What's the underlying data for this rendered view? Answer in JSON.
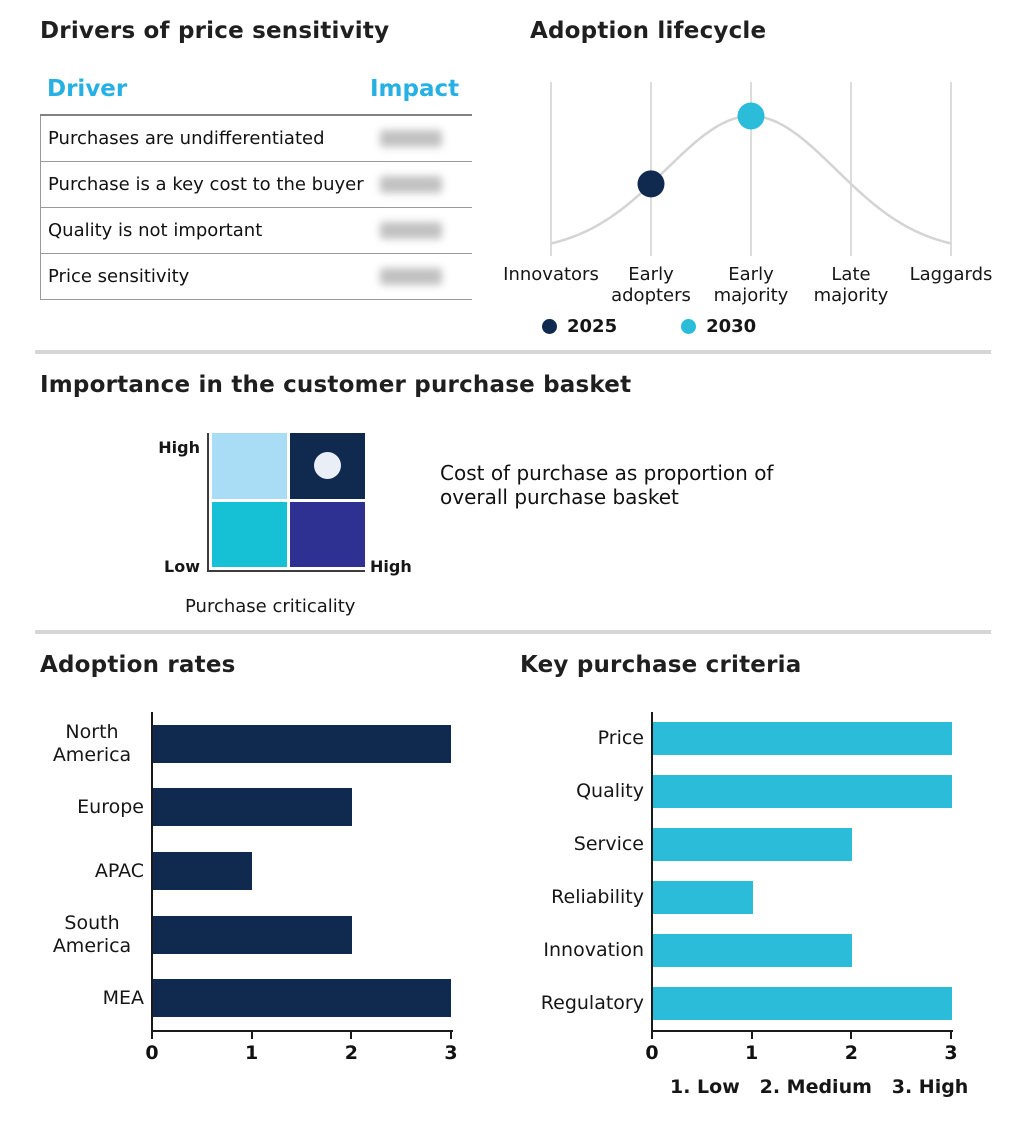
{
  "colors": {
    "navy": "#0f2a4e",
    "cyan": "#2bbcd9",
    "header_cyan": "#27b0e3",
    "light_blue": "#a9ddf5",
    "bright_cyan": "#16c1d5",
    "indigo": "#2e3192",
    "marker_light": "#e9eef7",
    "curve_gray": "#d4d4d4",
    "grid_gray": "#d0d0d0",
    "divider_gray": "#d6d6d6"
  },
  "chart_data": [
    {
      "id": "price-drivers",
      "type": "table",
      "title": "Drivers of price sensitivity",
      "columns": [
        "Driver",
        "Impact"
      ],
      "rows": [
        "Purchases are undifferentiated",
        "Purchase is a key cost to the buyer",
        "Quality is not important",
        "Price sensitivity"
      ],
      "impact_values_redacted": true
    },
    {
      "id": "adoption-lifecycle",
      "type": "line",
      "title": "Adoption lifecycle",
      "curve": "bell",
      "categories": [
        "Innovators",
        "Early adopters",
        "Early majority",
        "Late majority",
        "Laggards"
      ],
      "points": [
        {
          "label": "2025",
          "category": "Early adopters",
          "color": "#0f2a4e"
        },
        {
          "label": "2030",
          "category": "Early majority",
          "color": "#2bbcd9"
        }
      ],
      "legend": [
        {
          "label": "2025",
          "color": "#0f2a4e"
        },
        {
          "label": "2030",
          "color": "#2bbcd9"
        }
      ]
    },
    {
      "id": "purchase-basket-matrix",
      "type": "heatmap",
      "title": "Importance in the customer purchase basket",
      "x_axis_label": "Purchase criticality",
      "x_high_label": "High",
      "y_high_label": "High",
      "y_low_label": "Low",
      "annotation": "Cost of purchase as proportion of overall purchase basket",
      "quadrant_colors": {
        "top_left": "#a9ddf5",
        "top_right": "#0f2a4e",
        "bottom_left": "#16c1d5",
        "bottom_right": "#2e3192"
      },
      "marker": {
        "quadrant": "top_right",
        "color": "#e9eef7"
      }
    },
    {
      "id": "adoption-rates",
      "type": "bar",
      "orientation": "horizontal",
      "title": "Adoption rates",
      "categories": [
        "North America",
        "Europe",
        "APAC",
        "South America",
        "MEA"
      ],
      "values": [
        3,
        2,
        1,
        2,
        3
      ],
      "xlim": [
        0,
        3
      ],
      "ticks": [
        0,
        1,
        2,
        3
      ],
      "bar_color": "#0f2a4e"
    },
    {
      "id": "key-purchase-criteria",
      "type": "bar",
      "orientation": "horizontal",
      "title": "Key purchase criteria",
      "categories": [
        "Price",
        "Quality",
        "Service",
        "Reliability",
        "Innovation",
        "Regulatory"
      ],
      "values": [
        3,
        3,
        2,
        1,
        2,
        3
      ],
      "xlim": [
        0,
        3
      ],
      "ticks": [
        0,
        1,
        2,
        3
      ],
      "bar_color": "#2bbcd9",
      "scale_note": "1. Low   2. Medium   3. High"
    }
  ]
}
